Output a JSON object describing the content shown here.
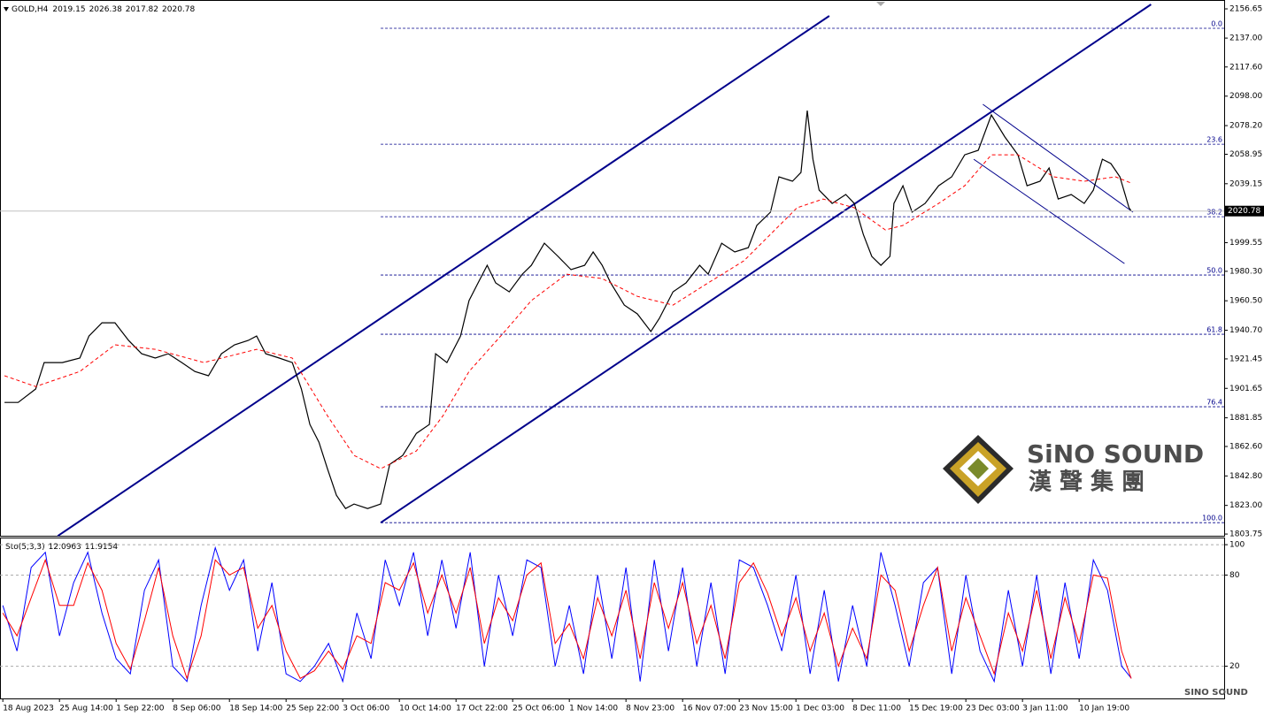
{
  "chart_data": [
    {
      "type": "line",
      "title": "GOLD,H4",
      "ohlc": [
        2019.15,
        2026.38,
        2017.82,
        2020.78
      ],
      "xlim": [
        -0.05,
        21.56
      ],
      "ylim": [
        1802.6,
        2162.6
      ],
      "xticks": [
        {
          "value": 0,
          "label": "18 Aug 2023"
        },
        {
          "value": 1,
          "label": "25 Aug 14:00"
        },
        {
          "value": 2,
          "label": "1 Sep 22:00"
        },
        {
          "value": 3,
          "label": "8 Sep 06:00"
        },
        {
          "value": 4,
          "label": "18 Sep 14:00"
        },
        {
          "value": 5,
          "label": "25 Sep 22:00"
        },
        {
          "value": 6,
          "label": "3 Oct 06:00"
        },
        {
          "value": 7,
          "label": "10 Oct 14:00"
        },
        {
          "value": 8,
          "label": "17 Oct 22:00"
        },
        {
          "value": 9,
          "label": "25 Oct 06:00"
        },
        {
          "value": 10,
          "label": "1 Nov 14:00"
        },
        {
          "value": 11,
          "label": "8 Nov 23:00"
        },
        {
          "value": 12,
          "label": "16 Nov 07:00"
        },
        {
          "value": 13,
          "label": "23 Nov 15:00"
        },
        {
          "value": 14,
          "label": "1 Dec 03:00"
        },
        {
          "value": 15,
          "label": "8 Dec 11:00"
        },
        {
          "value": 16,
          "label": "15 Dec 19:00"
        },
        {
          "value": 17,
          "label": "23 Dec 03:00"
        },
        {
          "value": 18,
          "label": "3 Jan 11:00"
        },
        {
          "value": 19,
          "label": "10 Jan 19:00"
        }
      ],
      "yticks": [
        2156.65,
        {
          "value": 2137.0,
          "label": "2137.00"
        },
        {
          "value": 2117.6,
          "label": "2117.60"
        },
        {
          "value": 2098.0,
          "label": "2098.00"
        },
        {
          "value": 2078.2,
          "label": "2078.20"
        },
        2058.95,
        2039.15,
        1999.55,
        {
          "value": 1980.3,
          "label": "1980.30"
        },
        {
          "value": 1960.5,
          "label": "1960.50"
        },
        {
          "value": 1940.7,
          "label": "1940.70"
        },
        1921.45,
        1901.65,
        1881.85,
        {
          "value": 1862.6,
          "label": "1862.60"
        },
        {
          "value": 1842.8,
          "label": "1842.80"
        },
        {
          "value": 1823.0,
          "label": "1823.00"
        },
        1803.75
      ],
      "series": [
        {
          "color": "#000000",
          "x": [
            0.03,
            0.27,
            0.58,
            0.73,
            1.05,
            1.36,
            1.52,
            1.75,
            1.98,
            2.22,
            2.45,
            2.69,
            2.92,
            3.16,
            3.39,
            3.63,
            3.86,
            4.09,
            4.33,
            4.48,
            4.64,
            4.88,
            5.11,
            5.27,
            5.42,
            5.58,
            5.73,
            5.89,
            6.05,
            6.2,
            6.44,
            6.67,
            6.83,
            7.06,
            7.3,
            7.53,
            7.64,
            7.84,
            8.08,
            8.23,
            8.39,
            8.55,
            8.7,
            8.94,
            9.17,
            9.33,
            9.56,
            9.8,
            10.03,
            10.27,
            10.42,
            10.58,
            10.73,
            10.97,
            11.2,
            11.44,
            11.59,
            11.83,
            12.06,
            12.3,
            12.45,
            12.69,
            12.92,
            13.16,
            13.31,
            13.55,
            13.7,
            13.94,
            14.09,
            14.2,
            14.3,
            14.41,
            14.64,
            14.88,
            15.03,
            15.19,
            15.34,
            15.5,
            15.66,
            15.73,
            15.89,
            16.05,
            16.28,
            16.52,
            16.75,
            16.98,
            17.22,
            17.45,
            17.69,
            17.92,
            18.08,
            18.31,
            18.47,
            18.63,
            18.86,
            19.09,
            19.25,
            19.41,
            19.56,
            19.72,
            19.88,
            19.92
          ],
          "values": [
            1892.2,
            1892.2,
            1901.2,
            1919.0,
            1919.0,
            1922.0,
            1936.8,
            1945.7,
            1945.7,
            1933.8,
            1924.9,
            1922.0,
            1924.9,
            1919.0,
            1913.0,
            1910.1,
            1924.9,
            1930.9,
            1933.8,
            1936.8,
            1924.9,
            1922.0,
            1919.0,
            1901.2,
            1877.4,
            1865.5,
            1847.7,
            1829.8,
            1820.9,
            1823.9,
            1820.9,
            1823.9,
            1850.6,
            1856.6,
            1871.4,
            1877.4,
            1924.9,
            1919.0,
            1936.8,
            1960.6,
            1972.5,
            1984.3,
            1972.5,
            1966.5,
            1978.4,
            1984.3,
            1999.2,
            1990.3,
            1981.4,
            1984.3,
            1993.3,
            1984.3,
            1972.5,
            1957.6,
            1951.7,
            1939.8,
            1948.7,
            1966.5,
            1972.5,
            1984.3,
            1978.4,
            1999.2,
            1993.3,
            1996.2,
            2011.1,
            2020.0,
            2043.8,
            2040.8,
            2046.7,
            2088.3,
            2055.6,
            2034.8,
            2025.9,
            2031.9,
            2025.9,
            2005.1,
            1990.3,
            1984.3,
            1990.3,
            2025.9,
            2037.8,
            2020.0,
            2025.9,
            2037.8,
            2043.8,
            2058.6,
            2061.6,
            2085.4,
            2070.5,
            2058.6,
            2037.8,
            2040.8,
            2049.7,
            2028.9,
            2031.9,
            2025.9,
            2034.8,
            2055.6,
            2052.7,
            2043.8,
            2023.0,
            2020.78
          ]
        },
        {
          "color": "#ff0000",
          "dashed": true,
          "x": [
            0.03,
            0.58,
            1.36,
            1.98,
            2.69,
            3.55,
            4.48,
            5.11,
            5.73,
            6.2,
            6.67,
            7.3,
            7.77,
            8.23,
            8.86,
            9.33,
            9.95,
            10.58,
            11.2,
            11.83,
            12.45,
            13.08,
            13.55,
            14.02,
            14.48,
            15.03,
            15.58,
            15.89,
            16.52,
            16.98,
            17.45,
            17.92,
            18.55,
            19.09,
            19.64,
            19.92
          ],
          "values": [
            1910.1,
            1902.9,
            1913.0,
            1930.9,
            1927.9,
            1919.0,
            1927.9,
            1922.0,
            1883.3,
            1856.6,
            1847.7,
            1859.6,
            1883.3,
            1913.0,
            1939.8,
            1960.6,
            1978.4,
            1975.4,
            1963.5,
            1957.6,
            1972.5,
            1987.3,
            2005.1,
            2023.0,
            2028.9,
            2023.0,
            2008.1,
            2011.1,
            2025.9,
            2037.8,
            2058.6,
            2058.6,
            2043.8,
            2040.8,
            2043.8,
            2039.6
          ]
        }
      ],
      "trendlines": [
        {
          "color": "#00008b",
          "width": 2,
          "x": [
            0.97,
            14.59
          ],
          "values": [
            1802.5,
            2151.9
          ]
        },
        {
          "color": "#00008b",
          "width": 2,
          "x": [
            6.67,
            20.27
          ],
          "values": [
            1811.4,
            2159.6
          ]
        },
        {
          "color": "#00008b",
          "width": 1,
          "x": [
            17.3,
            19.95
          ],
          "values": [
            2092.5,
            2020.0
          ]
        },
        {
          "color": "#00008b",
          "width": 1,
          "x": [
            17.14,
            19.8
          ],
          "values": [
            2055.6,
            1985.5
          ]
        }
      ],
      "fib_levels": [
        {
          "label": "0.0",
          "value": 2143.6
        },
        {
          "label": "23.6",
          "value": 2065.7
        },
        {
          "label": "38.2",
          "value": 2017.0
        },
        {
          "label": "50.0",
          "value": 1977.8
        },
        {
          "label": "61.8",
          "value": 1938.0
        },
        {
          "label": "76.4",
          "value": 1889.3
        },
        {
          "label": "100.0",
          "value": 1811.4
        }
      ]
    },
    {
      "type": "line",
      "title": "Sto(5,3,3)",
      "readings": [
        12.0963,
        11.9154
      ],
      "ylim": [
        -1.2,
        104.7
      ],
      "yticks": [
        100,
        80,
        20
      ],
      "grid": true,
      "x": [
        0,
        0.25,
        0.5,
        0.75,
        1,
        1.25,
        1.5,
        1.75,
        2,
        2.25,
        2.5,
        2.75,
        3,
        3.25,
        3.5,
        3.75,
        4,
        4.25,
        4.5,
        4.75,
        5,
        5.25,
        5.5,
        5.75,
        6,
        6.25,
        6.5,
        6.75,
        7,
        7.25,
        7.5,
        7.75,
        8,
        8.25,
        8.5,
        8.75,
        9,
        9.25,
        9.5,
        9.75,
        10,
        10.25,
        10.5,
        10.75,
        11,
        11.25,
        11.5,
        11.75,
        12,
        12.25,
        12.5,
        12.75,
        13,
        13.25,
        13.5,
        13.75,
        14,
        14.25,
        14.5,
        14.75,
        15,
        15.25,
        15.5,
        15.75,
        16,
        16.25,
        16.5,
        16.75,
        17,
        17.25,
        17.5,
        17.75,
        18,
        18.25,
        18.5,
        18.75,
        19,
        19.25,
        19.5,
        19.75,
        19.92
      ],
      "series": [
        {
          "color": "#0000ff",
          "values": [
            60,
            30,
            85,
            95,
            40,
            75,
            95,
            55,
            25,
            15,
            70,
            90,
            20,
            10,
            60,
            98,
            70,
            90,
            30,
            75,
            15,
            10,
            20,
            35,
            10,
            55,
            25,
            90,
            60,
            95,
            40,
            90,
            45,
            95,
            20,
            80,
            40,
            90,
            85,
            20,
            60,
            15,
            80,
            25,
            85,
            10,
            90,
            30,
            85,
            20,
            75,
            15,
            90,
            85,
            60,
            30,
            80,
            15,
            70,
            10,
            60,
            20,
            95,
            60,
            20,
            75,
            85,
            15,
            80,
            30,
            10,
            70,
            20,
            80,
            15,
            75,
            25,
            90,
            70,
            20,
            12.0963
          ]
        },
        {
          "color": "#ff0000",
          "values": [
            55,
            40,
            65,
            90,
            60,
            60,
            88,
            70,
            35,
            18,
            50,
            85,
            40,
            12,
            40,
            90,
            80,
            85,
            45,
            60,
            30,
            12,
            17,
            30,
            18,
            40,
            35,
            75,
            70,
            88,
            55,
            80,
            55,
            85,
            35,
            65,
            50,
            80,
            88,
            35,
            48,
            25,
            65,
            40,
            70,
            25,
            75,
            45,
            75,
            35,
            60,
            25,
            75,
            88,
            68,
            40,
            65,
            30,
            55,
            20,
            45,
            25,
            80,
            70,
            30,
            60,
            85,
            30,
            65,
            40,
            15,
            55,
            30,
            70,
            25,
            65,
            35,
            80,
            78,
            30,
            11.9154
          ]
        }
      ]
    }
  ],
  "watermark": {
    "name": "SiNO SOUND",
    "chinese": "漢 聲 集 團",
    "small": "SINO SOUND"
  }
}
